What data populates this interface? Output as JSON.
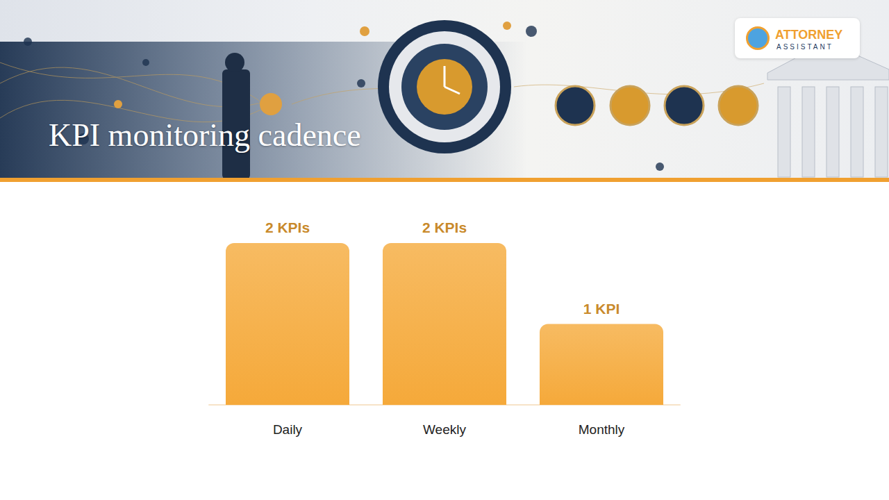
{
  "chart_data": {
    "type": "bar",
    "title": "KPI monitoring cadence",
    "categories": [
      "Daily",
      "Weekly",
      "Monthly"
    ],
    "values": [
      2,
      2,
      1
    ],
    "value_labels": [
      "2 KPIs",
      "2 KPIs",
      "1 KPI"
    ],
    "color": "#f5a93a",
    "ylim": [
      0,
      2
    ],
    "yticks": [
      0,
      1,
      2
    ],
    "grid": false,
    "data_labels": true,
    "tick_labels": "x"
  },
  "brand": {
    "name": "ATTORNEY",
    "tagline": "ASSISTANT"
  }
}
